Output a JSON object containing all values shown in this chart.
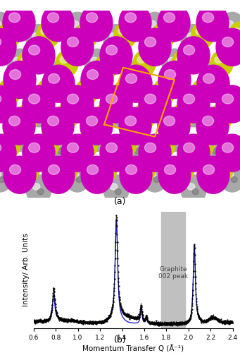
{
  "xlabel": "Momentum Transfer Q (Å⁻¹)",
  "ylabel": "Intensity/ Arb. Units",
  "xlim": [
    0.6,
    2.4
  ],
  "label_a": "(a)",
  "label_b": "(b)",
  "graphite_region": [
    1.75,
    1.97
  ],
  "graphite_label": "Graphite\n002 peak",
  "xticks": [
    0.6,
    0.8,
    1.0,
    1.2,
    1.4,
    1.6,
    1.8,
    2.0,
    2.2,
    2.4
  ],
  "black_color": "#000000",
  "blue_color": "#2222cc",
  "gray_region_color": "#c0c0c0",
  "background_color": "#ffffff",
  "fig_width": 3.41,
  "fig_height": 5.0,
  "dpi": 100
}
